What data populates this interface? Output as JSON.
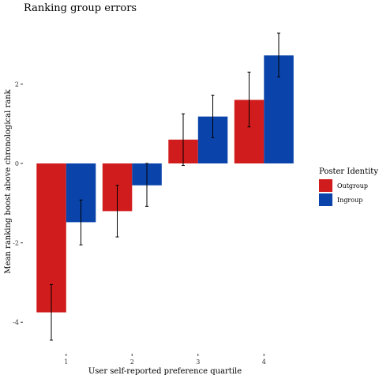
{
  "chart_data": {
    "type": "bar",
    "title": "Ranking group errors",
    "xlabel": "User self-reported preference quartile",
    "ylabel": "Mean ranking boost above chronological rank",
    "categories": [
      "1",
      "2",
      "3",
      "4"
    ],
    "yticks": [
      -4,
      -2,
      0,
      2
    ],
    "ytick_labels": [
      "-4",
      "-2",
      "0",
      "2"
    ],
    "ylim": [
      -4.9,
      3.4
    ],
    "grid": false,
    "legend": {
      "title": "Poster Identity",
      "placement": "right"
    },
    "series": [
      {
        "name": "Outgroup",
        "color": "#d01c1c",
        "values": [
          -3.75,
          -1.2,
          0.6,
          1.6
        ],
        "err_low": [
          -4.45,
          -1.85,
          -0.05,
          0.92
        ],
        "err_high": [
          -3.05,
          -0.55,
          1.25,
          2.3
        ]
      },
      {
        "name": "Ingroup",
        "color": "#0a44aa",
        "values": [
          -1.48,
          -0.55,
          1.18,
          2.72
        ],
        "err_low": [
          -2.05,
          -1.08,
          0.65,
          2.18
        ],
        "err_high": [
          -0.92,
          0.0,
          1.72,
          3.28
        ]
      }
    ]
  }
}
